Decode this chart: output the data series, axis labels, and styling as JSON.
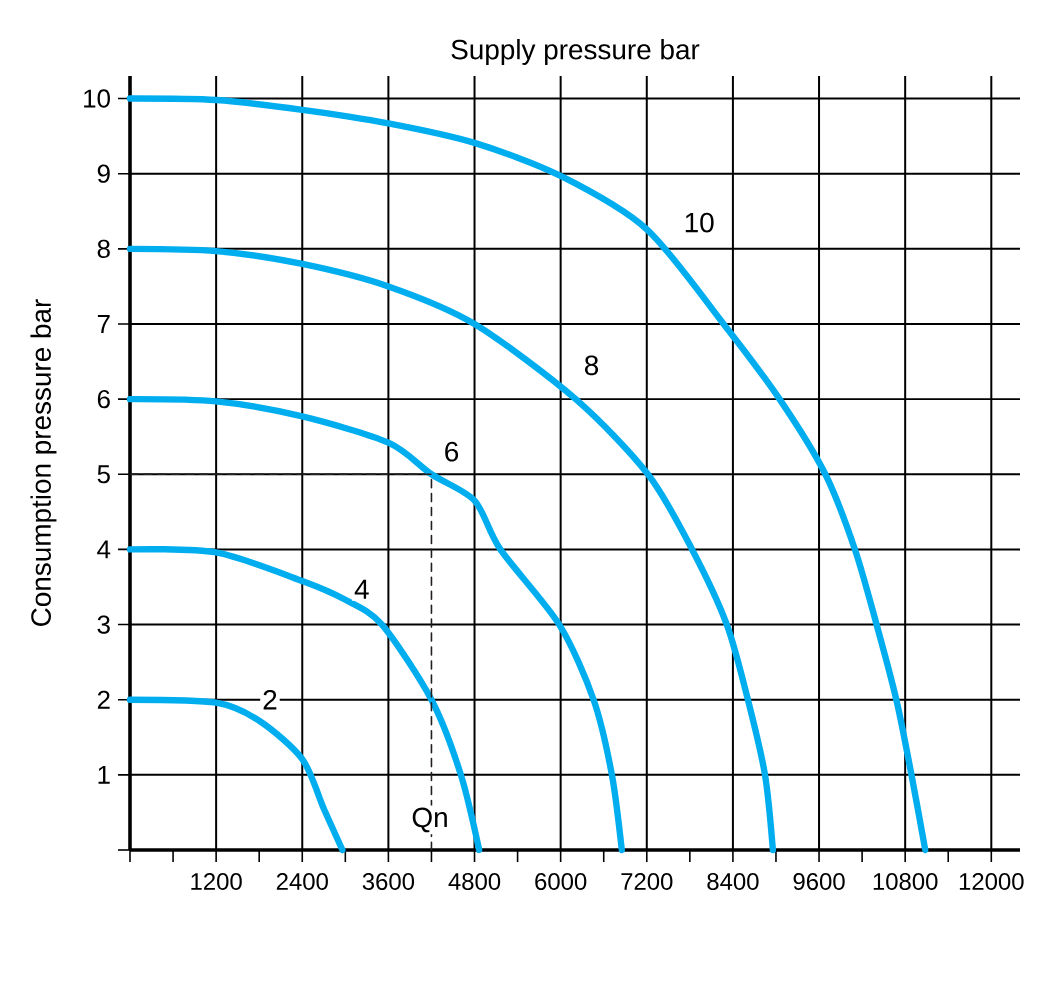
{
  "chart_data": {
    "type": "line",
    "title": "Supply pressure bar",
    "ylabel": "Consumption pressure bar",
    "series": [
      {
        "color": "#00aeef",
        "x": [
          0,
          1200,
          1800,
          2400,
          2700,
          2960
        ],
        "values": [
          2,
          1.96,
          1.72,
          1.21,
          0.55,
          0
        ]
      },
      {
        "color": "#00aeef",
        "x": [
          0,
          1200,
          2400,
          3000,
          3510,
          4200,
          4610,
          4865
        ],
        "values": [
          4,
          3.96,
          3.58,
          3.33,
          3,
          2,
          1,
          0
        ]
      },
      {
        "color": "#00aeef",
        "x": [
          0,
          1200,
          2400,
          3600,
          4200,
          4800,
          5160,
          5981,
          6459,
          6714,
          6852
        ],
        "values": [
          6,
          5.97,
          5.77,
          5.42,
          5,
          4.65,
          4,
          3,
          2,
          1,
          0
        ]
      },
      {
        "color": "#00aeef",
        "x": [
          0,
          1200,
          2400,
          3600,
          4800,
          6210,
          7216,
          7831,
          8315,
          8609,
          8847,
          8957
        ],
        "values": [
          8,
          7.97,
          7.8,
          7.5,
          7,
          6,
          5,
          4,
          3,
          2,
          1,
          0
        ]
      },
      {
        "color": "#00aeef",
        "x": [
          0,
          1200,
          2400,
          3600,
          4800,
          6000,
          7200,
          8270,
          9050,
          9688,
          10100,
          10402,
          10677,
          10888,
          11080
        ],
        "values": [
          10,
          9.98,
          9.85,
          9.67,
          9.41,
          8.97,
          8.26,
          7,
          6,
          5,
          4,
          3,
          2,
          1,
          0
        ]
      },
      {
        "type": "line",
        "color": "#231f20",
        "line_style": "dashed",
        "x": [
          0,
          4200,
          4200
        ],
        "values": [
          5,
          5,
          0
        ]
      }
    ],
    "annotations": [
      {
        "text": "2",
        "x": 1950,
        "y": 2
      },
      {
        "text": "4",
        "x": 3230,
        "y": 3.47
      },
      {
        "text": "6",
        "x": 4480,
        "y": 5.3
      },
      {
        "text": "8",
        "x": 6430,
        "y": 6.45
      },
      {
        "text": "10",
        "x": 7930,
        "y": 8.35
      },
      {
        "text": "Qn",
        "x": 4180,
        "y": 0.4
      }
    ],
    "xlim": [
      0,
      12400
    ],
    "ylim": [
      0,
      10.3
    ],
    "xticks": [
      {
        "value": 0,
        "label": null
      },
      {
        "value": 600,
        "label": null
      },
      1200,
      {
        "value": 1800,
        "label": null
      },
      2400,
      {
        "value": 3000,
        "label": null
      },
      3600,
      {
        "value": 4200,
        "label": null
      },
      4800,
      {
        "value": 5400,
        "label": null
      },
      6000,
      {
        "value": 6600,
        "label": null
      },
      7200,
      {
        "value": 7800,
        "label": null
      },
      8400,
      {
        "value": 9000,
        "label": null
      },
      9600,
      {
        "value": 10200,
        "label": null
      },
      10800,
      {
        "value": 11400,
        "label": null
      },
      12000
    ],
    "yticks": [
      {
        "value": 0,
        "label": null
      },
      1,
      2,
      3,
      4,
      5,
      6,
      7,
      8,
      9,
      10
    ],
    "grid": true,
    "marker": "none",
    "line_style": "solid"
  }
}
